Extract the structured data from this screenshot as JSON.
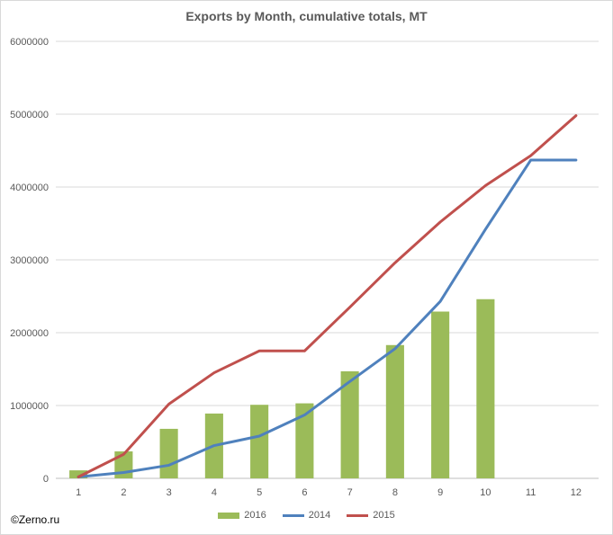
{
  "chart_data": {
    "type": "bar+line",
    "title": "Exports by Month, cumulative totals, MT",
    "categories": [
      "1",
      "2",
      "3",
      "4",
      "5",
      "6",
      "7",
      "8",
      "9",
      "10",
      "11",
      "12"
    ],
    "ylim": [
      0,
      6000000
    ],
    "yticks": [
      "0",
      "1000000",
      "2000000",
      "3000000",
      "4000000",
      "5000000",
      "6000000"
    ],
    "grid": true,
    "legend_position": "bottom",
    "series": [
      {
        "name": "2016",
        "kind": "bar",
        "color": "#9bbb59",
        "values": [
          110000,
          370000,
          680000,
          890000,
          1010000,
          1030000,
          1470000,
          1830000,
          2290000,
          2460000,
          null,
          null
        ]
      },
      {
        "name": "2014",
        "kind": "line",
        "color": "#4f81bd",
        "values": [
          20000,
          80000,
          180000,
          450000,
          580000,
          870000,
          1330000,
          1780000,
          2430000,
          3420000,
          4370000,
          4370000
        ]
      },
      {
        "name": "2015",
        "kind": "line",
        "color": "#c0504d",
        "values": [
          20000,
          330000,
          1020000,
          1450000,
          1750000,
          1750000,
          2350000,
          2960000,
          3520000,
          4020000,
          4430000,
          4980000
        ]
      }
    ]
  },
  "footer": {
    "copyright": "©Zerno.ru"
  }
}
